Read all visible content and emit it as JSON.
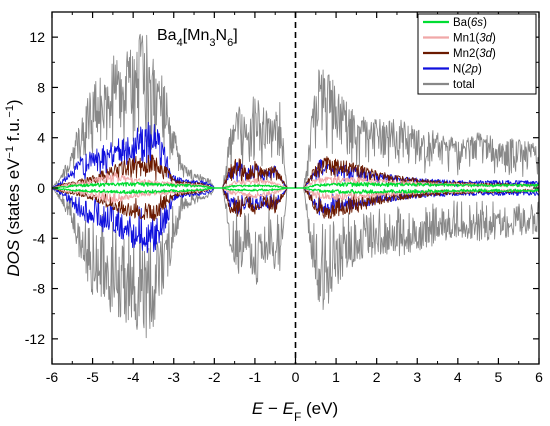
{
  "chart_data": {
    "type": "line",
    "title": "Ba4[Mn3N6]",
    "title_parts": [
      "Ba",
      "4",
      "[Mn",
      "3",
      "N",
      "6",
      "]"
    ],
    "xlabel": "E − EF (eV)",
    "xlabel_parts": [
      "E",
      " − ",
      "E",
      "F",
      " (eV)"
    ],
    "ylabel": "DOS (states eV−1 f.u.−1)",
    "ylabel_parts": [
      "DOS",
      " (states eV",
      "−1",
      " f.u.",
      "−1",
      ")"
    ],
    "xlim": [
      -6,
      6
    ],
    "ylim": [
      -14,
      14
    ],
    "xticks": [
      -6,
      -5,
      -4,
      -3,
      -2,
      -1,
      0,
      1,
      2,
      3,
      4,
      5,
      6
    ],
    "xtick_labels": [
      "-6",
      "-5",
      "-4",
      "-3",
      "-2",
      "-1",
      "0",
      "1",
      "2",
      "3",
      "4",
      "5",
      "6"
    ],
    "yticks": [
      -12,
      -8,
      -4,
      0,
      4,
      8,
      12
    ],
    "ytick_labels": [
      "-12",
      "-8",
      "-4",
      "0",
      "4",
      "8",
      "12"
    ],
    "grid": false,
    "legend_position": "top-right",
    "fermi_level": 0,
    "fermi_line_style": "dashed",
    "spin_polarized": true,
    "series": [
      {
        "name": "Ba(6s)",
        "name_parts": [
          "Ba(",
          "6s",
          ")"
        ],
        "color": "#00dd33",
        "envelope": [
          [
            -6.0,
            0
          ],
          [
            -5.7,
            0.15
          ],
          [
            -5.5,
            0.25
          ],
          [
            -5.0,
            0.35
          ],
          [
            -4.5,
            0.4
          ],
          [
            -4.0,
            0.45
          ],
          [
            -3.5,
            0.4
          ],
          [
            -3.0,
            0.3
          ],
          [
            -2.7,
            0.3
          ],
          [
            -2.3,
            0.2
          ],
          [
            -2.0,
            0
          ],
          [
            -1.8,
            0
          ],
          [
            -1.6,
            0.2
          ],
          [
            -1.0,
            0.25
          ],
          [
            -0.5,
            0.2
          ],
          [
            -0.2,
            0
          ],
          [
            0.2,
            0
          ],
          [
            0.5,
            0.3
          ],
          [
            1.0,
            0.4
          ],
          [
            1.5,
            0.45
          ],
          [
            2.0,
            0.4
          ],
          [
            2.5,
            0.4
          ],
          [
            3.0,
            0.4
          ],
          [
            3.5,
            0.35
          ],
          [
            4.0,
            0.3
          ],
          [
            4.5,
            0.3
          ],
          [
            5.0,
            0.3
          ],
          [
            5.5,
            0.3
          ],
          [
            6.0,
            0.3
          ]
        ]
      },
      {
        "name": "Mn1(3d)",
        "name_parts": [
          "Mn1(",
          "3d",
          ")"
        ],
        "color": "#f0a8a8",
        "envelope": [
          [
            -6.0,
            0
          ],
          [
            -5.7,
            0.3
          ],
          [
            -5.5,
            0.4
          ],
          [
            -5.0,
            0.7
          ],
          [
            -4.5,
            1.3
          ],
          [
            -4.2,
            1.0
          ],
          [
            -4.0,
            0.8
          ],
          [
            -3.5,
            0.6
          ],
          [
            -3.0,
            0.5
          ],
          [
            -2.7,
            0.4
          ],
          [
            -2.3,
            0.3
          ],
          [
            -2.0,
            0
          ],
          [
            -1.8,
            0
          ],
          [
            -1.6,
            0.5
          ],
          [
            -1.0,
            0.8
          ],
          [
            -0.5,
            0.5
          ],
          [
            -0.2,
            0
          ],
          [
            0.2,
            0
          ],
          [
            0.5,
            0.8
          ],
          [
            1.0,
            1.0
          ],
          [
            1.5,
            0.9
          ],
          [
            2.0,
            0.7
          ],
          [
            2.5,
            0.6
          ],
          [
            3.0,
            0.5
          ],
          [
            3.5,
            0.4
          ],
          [
            4.0,
            0.4
          ],
          [
            4.5,
            0.35
          ],
          [
            5.0,
            0.3
          ],
          [
            5.5,
            0.3
          ],
          [
            6.0,
            0.3
          ]
        ]
      },
      {
        "name": "Mn2(3d)",
        "name_parts": [
          "Mn2(",
          "3d",
          ")"
        ],
        "color": "#6b1a00",
        "envelope": [
          [
            -6.0,
            0
          ],
          [
            -5.7,
            0.4
          ],
          [
            -5.5,
            0.5
          ],
          [
            -5.0,
            1.0
          ],
          [
            -4.5,
            1.8
          ],
          [
            -4.0,
            2.5
          ],
          [
            -3.5,
            2.7
          ],
          [
            -3.2,
            1.8
          ],
          [
            -3.0,
            0.8
          ],
          [
            -2.7,
            0.5
          ],
          [
            -2.3,
            0.4
          ],
          [
            -2.0,
            0
          ],
          [
            -1.8,
            0
          ],
          [
            -1.6,
            2.0
          ],
          [
            -1.4,
            2.5
          ],
          [
            -1.2,
            1.5
          ],
          [
            -1.0,
            2.2
          ],
          [
            -0.8,
            1.5
          ],
          [
            -0.5,
            2.0
          ],
          [
            -0.2,
            0
          ],
          [
            0.2,
            0
          ],
          [
            0.5,
            2.0
          ],
          [
            0.8,
            2.6
          ],
          [
            1.0,
            2.3
          ],
          [
            1.5,
            2.0
          ],
          [
            2.0,
            1.4
          ],
          [
            2.5,
            1.0
          ],
          [
            3.0,
            0.8
          ],
          [
            3.5,
            0.6
          ],
          [
            4.0,
            0.5
          ],
          [
            4.5,
            0.4
          ],
          [
            5.0,
            0.4
          ],
          [
            5.5,
            0.35
          ],
          [
            6.0,
            0.3
          ]
        ]
      },
      {
        "name": "N(2p)",
        "name_parts": [
          "N(",
          "2p",
          ")"
        ],
        "color": "#1010dd",
        "envelope": [
          [
            -6.0,
            0
          ],
          [
            -5.8,
            0.5
          ],
          [
            -5.5,
            1.5
          ],
          [
            -5.3,
            2.5
          ],
          [
            -5.0,
            3.0
          ],
          [
            -4.7,
            3.6
          ],
          [
            -4.5,
            4.0
          ],
          [
            -4.2,
            4.3
          ],
          [
            -4.0,
            4.8
          ],
          [
            -3.8,
            5.2
          ],
          [
            -3.5,
            5.3
          ],
          [
            -3.3,
            4.0
          ],
          [
            -3.1,
            2.5
          ],
          [
            -3.0,
            1.0
          ],
          [
            -2.7,
            0.7
          ],
          [
            -2.3,
            0.6
          ],
          [
            -2.1,
            0.4
          ],
          [
            -2.0,
            0
          ],
          [
            -1.8,
            0
          ],
          [
            -1.6,
            1.6
          ],
          [
            -1.4,
            2.2
          ],
          [
            -1.2,
            1.5
          ],
          [
            -1.0,
            2.0
          ],
          [
            -0.8,
            1.5
          ],
          [
            -0.5,
            1.8
          ],
          [
            -0.2,
            0
          ],
          [
            0.2,
            0
          ],
          [
            0.4,
            1.0
          ],
          [
            0.6,
            2.3
          ],
          [
            0.8,
            2.0
          ],
          [
            1.0,
            1.9
          ],
          [
            1.5,
            1.7
          ],
          [
            2.0,
            1.3
          ],
          [
            2.5,
            1.0
          ],
          [
            3.0,
            0.8
          ],
          [
            3.5,
            0.7
          ],
          [
            4.0,
            0.6
          ],
          [
            4.5,
            0.6
          ],
          [
            5.0,
            0.6
          ],
          [
            5.5,
            0.6
          ],
          [
            6.0,
            0.6
          ]
        ]
      },
      {
        "name": "total",
        "name_parts": [
          "total",
          "",
          ""
        ],
        "color": "#888888",
        "envelope": [
          [
            -6.0,
            0
          ],
          [
            -5.8,
            1.0
          ],
          [
            -5.5,
            3.0
          ],
          [
            -5.3,
            6.0
          ],
          [
            -5.0,
            8.5
          ],
          [
            -4.7,
            9.0
          ],
          [
            -4.5,
            10.5
          ],
          [
            -4.2,
            11.0
          ],
          [
            -4.0,
            11.0
          ],
          [
            -3.8,
            12.5
          ],
          [
            -3.6,
            12.0
          ],
          [
            -3.4,
            10.0
          ],
          [
            -3.2,
            8.0
          ],
          [
            -3.0,
            5.0
          ],
          [
            -2.8,
            2.0
          ],
          [
            -2.6,
            1.5
          ],
          [
            -2.3,
            1.0
          ],
          [
            -2.1,
            0.8
          ],
          [
            -2.0,
            0
          ],
          [
            -1.8,
            0
          ],
          [
            -1.6,
            5.0
          ],
          [
            -1.4,
            7.0
          ],
          [
            -1.2,
            5.0
          ],
          [
            -1.0,
            8.0
          ],
          [
            -0.8,
            6.5
          ],
          [
            -0.6,
            6.0
          ],
          [
            -0.4,
            7.5
          ],
          [
            -0.2,
            0
          ],
          [
            0.2,
            0
          ],
          [
            0.4,
            6.0
          ],
          [
            0.6,
            10.0
          ],
          [
            0.8,
            9.5
          ],
          [
            1.0,
            8.0
          ],
          [
            1.5,
            6.0
          ],
          [
            2.0,
            5.5
          ],
          [
            2.5,
            5.5
          ],
          [
            3.0,
            5.0
          ],
          [
            3.5,
            4.5
          ],
          [
            4.0,
            4.0
          ],
          [
            4.5,
            4.5
          ],
          [
            5.0,
            4.0
          ],
          [
            5.5,
            4.0
          ],
          [
            6.0,
            3.5
          ]
        ]
      }
    ]
  }
}
